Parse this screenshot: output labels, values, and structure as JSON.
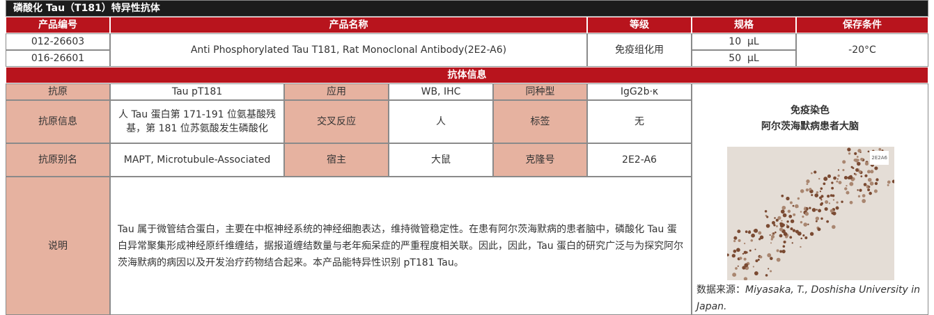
{
  "title": "磷酸化 Tau（T181）特异性抗体",
  "product_table": {
    "headers": [
      "产品编号",
      "产品名称",
      "等级",
      "规格",
      "保存条件"
    ],
    "codes": [
      "012-26603",
      "016-26601"
    ],
    "name": "Anti Phosphorylated Tau T181, Rat Monoclonal Antibody(2E2-A6)",
    "grade": "免疫组化用",
    "specs": [
      "10  μL",
      "50  μL"
    ],
    "storage": "-20°C"
  },
  "antibody_info": {
    "section_title": "抗体信息",
    "rows": [
      [
        "抗原",
        "Tau pT181",
        "应用",
        "WB, IHC",
        "同种型",
        "IgG2b·κ"
      ],
      [
        "抗原信息",
        "人 Tau 蛋白第 171-191 位氨基酸残基，第 181 位苏氨酸发生磷酸化",
        "交叉反应",
        "人",
        "标签",
        "无"
      ],
      [
        "抗原别名",
        "MAPT, Microtubule-Associated",
        "宿主",
        "大鼠",
        "克隆号",
        "2E2-A6"
      ]
    ],
    "description_label": "说明",
    "description": "Tau 属于微管结合蛋白，主要在中枢神经系统的神经细胞表达，维持微管稳定性。在患有阿尔茨海默病的患者脑中，磷酸化 Tau 蛋白异常聚集形成神经原纤维缠结，据报道缠结数量与老年痴呆症的严重程度相关联。因此，因此，Tau 蛋白的研究广泛与为探究阿尔茨海默病的病因以及开发治疗药物结合起来。本产品能特异性识别 pT181 Tau。"
  },
  "image_panel": {
    "title": "免疫染色",
    "subtitle": "阿尔茨海默病患者大脑",
    "image_label": "2E2A6",
    "source_label": "数据来源：",
    "source": "Miyasaka, T., Doshisha University in Japan."
  }
}
